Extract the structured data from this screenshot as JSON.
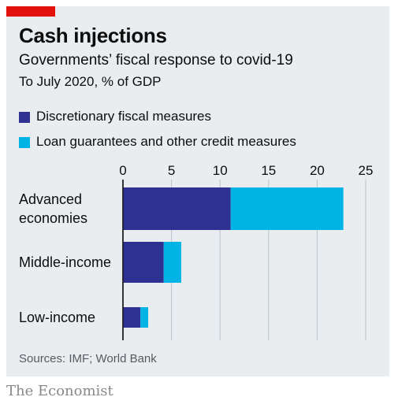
{
  "header": {
    "title": "Cash injections",
    "subtitle": "Governments’ fiscal response to covid-19",
    "unit_note": "To July 2020, % of GDP"
  },
  "footer": {
    "source": "Sources: IMF; World Bank",
    "brand": "The Economist"
  },
  "colors": {
    "brand_red": "#e3120b",
    "panel_bg": "#e9edf0",
    "gridline": "#b7c4cc"
  },
  "chart_data": {
    "type": "bar",
    "orientation": "horizontal",
    "stacked": true,
    "categories": [
      "Advanced economies",
      "Middle-income",
      "Low-income"
    ],
    "category_labels": [
      [
        "Advanced",
        "economies"
      ],
      [
        "Middle-income"
      ],
      [
        "Low-income"
      ]
    ],
    "series": [
      {
        "name": "Discretionary fiscal measures",
        "color": "#2e3192",
        "values": [
          11.1,
          4.2,
          1.8
        ]
      },
      {
        "name": "Loan guarantees and other credit measures",
        "color": "#00b4e6",
        "values": [
          11.6,
          1.8,
          0.8
        ]
      }
    ],
    "x_ticks": [
      "0",
      "5",
      "10",
      "15",
      "20",
      "25"
    ],
    "xlim": [
      0,
      25
    ],
    "grid": true,
    "axis_position": "top",
    "legend_position": "top-left"
  }
}
